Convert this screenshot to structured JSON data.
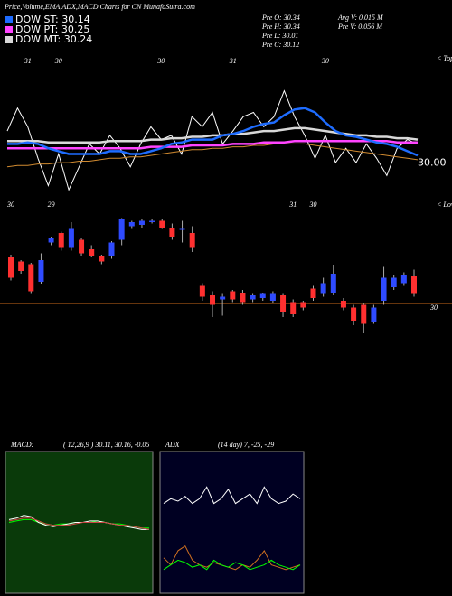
{
  "header": {
    "title": "Price,Volume,EMA,ADX,MACD Charts for CN  MunafaSutra.com"
  },
  "info": [
    [
      "Pre  O: 30.34",
      "Pre  H: 30.34",
      "Pre  L: 30.01",
      "Pre  C: 30.12"
    ],
    [
      "Avg V: 0.015 M",
      "Pre  V: 0.056  M"
    ]
  ],
  "chart_data": [
    {
      "type": "line",
      "ylim": [
        29.75,
        30.6
      ],
      "yticks": [
        {
          "value": 30,
          "label": "30.00"
        }
      ],
      "tops_label": "< Tops",
      "categories": [
        null,
        null,
        "31",
        null,
        null,
        "30",
        null,
        null,
        null,
        null,
        null,
        null,
        null,
        null,
        null,
        "30",
        null,
        null,
        null,
        null,
        null,
        null,
        "31",
        null,
        null,
        null,
        null,
        null,
        null,
        null,
        null,
        "30",
        null,
        null,
        null,
        null,
        null,
        null,
        null,
        null,
        null
      ],
      "series": [
        {
          "color": "#ffffff",
          "values": [
            30.19,
            30.35,
            30.22,
            30.0,
            29.81,
            30.03,
            29.78,
            29.94,
            30.1,
            30.03,
            30.16,
            30.07,
            29.94,
            30.1,
            30.22,
            30.13,
            30.16,
            30.03,
            30.29,
            30.22,
            30.32,
            30.1,
            30.19,
            30.29,
            30.32,
            30.22,
            30.29,
            30.47,
            30.29,
            30.16,
            30.0,
            30.16,
            29.97,
            30.07,
            29.97,
            30.1,
            30.0,
            29.88,
            30.07,
            30.13,
            30.1
          ]
        },
        {
          "color": "#d08a30",
          "values": [
            29.94,
            29.95,
            29.95,
            29.96,
            29.96,
            29.97,
            29.97,
            29.98,
            29.98,
            29.99,
            30.0,
            30.0,
            30.01,
            30.01,
            30.02,
            30.03,
            30.04,
            30.05,
            30.06,
            30.06,
            30.07,
            30.07,
            30.08,
            30.08,
            30.09,
            30.09,
            30.1,
            30.1,
            30.1,
            30.1,
            30.09,
            30.08,
            30.07,
            30.06,
            30.05,
            30.04,
            30.03,
            30.02,
            30.01,
            30.0,
            29.99
          ]
        },
        {
          "name": "DOW MT: 30.24",
          "color": "#d8d8d8",
          "values": [
            30.12,
            30.12,
            30.12,
            30.12,
            30.11,
            30.11,
            30.11,
            30.11,
            30.11,
            30.11,
            30.12,
            30.12,
            30.12,
            30.12,
            30.13,
            30.13,
            30.14,
            30.14,
            30.15,
            30.15,
            30.16,
            30.16,
            30.17,
            30.17,
            30.18,
            30.19,
            30.19,
            30.2,
            30.21,
            30.21,
            30.2,
            30.19,
            30.18,
            30.17,
            30.16,
            30.16,
            30.15,
            30.15,
            30.14,
            30.14,
            30.13
          ]
        },
        {
          "name": "DOW PT: 30.25",
          "color": "#ff44ff",
          "values": [
            30.07,
            30.07,
            30.07,
            30.07,
            30.07,
            30.07,
            30.07,
            30.07,
            30.07,
            30.07,
            30.07,
            30.07,
            30.07,
            30.07,
            30.08,
            30.08,
            30.08,
            30.08,
            30.09,
            30.09,
            30.09,
            30.09,
            30.1,
            30.1,
            30.1,
            30.11,
            30.11,
            30.11,
            30.12,
            30.12,
            30.12,
            30.12,
            30.12,
            30.12,
            30.12,
            30.12,
            30.12,
            30.12,
            30.11,
            30.11,
            30.11
          ]
        },
        {
          "name": "DOW ST: 30.14",
          "color": "#1e6cff",
          "values": [
            30.1,
            30.1,
            30.11,
            30.1,
            30.07,
            30.05,
            30.03,
            30.03,
            30.03,
            30.03,
            30.05,
            30.05,
            30.03,
            30.03,
            30.05,
            30.07,
            30.1,
            30.11,
            30.13,
            30.13,
            30.13,
            30.16,
            30.17,
            30.19,
            30.22,
            30.24,
            30.25,
            30.3,
            30.34,
            30.35,
            30.32,
            30.25,
            30.19,
            30.16,
            30.15,
            30.13,
            30.11,
            30.1,
            30.08,
            30.05,
            30.02
          ]
        }
      ]
    },
    {
      "type": "candlestick",
      "ylim": [
        29.7,
        30.7
      ],
      "yticks": [
        30
      ],
      "lows_label": "< Lows",
      "up_color": "#2f4bff",
      "down_color": "#ff3030",
      "ref_color": "#cc6a1a",
      "categories": [
        "30",
        null,
        null,
        null,
        "29",
        null,
        null,
        null,
        null,
        null,
        null,
        null,
        null,
        null,
        null,
        null,
        null,
        null,
        null,
        null,
        null,
        null,
        null,
        null,
        null,
        null,
        null,
        null,
        "31",
        null,
        "30",
        null,
        null,
        null,
        null,
        null,
        null,
        null,
        null,
        null,
        null
      ],
      "open": [
        30.34,
        30.31,
        30.29,
        30.16,
        30.45,
        30.52,
        30.41,
        30.47,
        30.4,
        30.35,
        30.35,
        30.47,
        30.57,
        30.58,
        30.6,
        30.61,
        30.56,
        30.55,
        30.52,
        30.13,
        30.06,
        30.03,
        30.09,
        30.08,
        30.03,
        30.04,
        30.02,
        30.06,
        30.01,
        30.01,
        30.11,
        30.07,
        30.08,
        30.02,
        29.97,
        29.99,
        29.86,
        30.02,
        30.12,
        30.15,
        30.2
      ],
      "high": [
        30.36,
        30.32,
        30.3,
        30.37,
        30.49,
        30.53,
        30.6,
        30.48,
        30.43,
        30.36,
        30.46,
        30.63,
        30.61,
        30.62,
        30.62,
        30.62,
        30.59,
        30.61,
        30.57,
        30.15,
        30.09,
        30.07,
        30.1,
        30.1,
        30.07,
        30.08,
        30.09,
        30.07,
        30.03,
        30.02,
        30.13,
        30.19,
        30.28,
        30.04,
        29.99,
        30.0,
        29.99,
        30.27,
        30.21,
        30.23,
        30.25
      ],
      "low": [
        30.17,
        30.22,
        30.07,
        30.14,
        30.43,
        30.39,
        30.39,
        30.35,
        30.34,
        30.29,
        30.33,
        30.43,
        30.55,
        30.56,
        30.59,
        30.55,
        30.47,
        30.45,
        30.38,
        30.02,
        29.9,
        29.91,
        30.01,
        29.99,
        30.01,
        30.02,
        30.0,
        29.9,
        29.9,
        29.95,
        30.02,
        30.05,
        30.06,
        29.95,
        29.84,
        29.78,
        29.85,
        29.99,
        30.1,
        30.13,
        30.05
      ],
      "close": [
        30.19,
        30.24,
        30.09,
        30.32,
        30.48,
        30.41,
        30.55,
        30.37,
        30.35,
        30.31,
        30.45,
        30.62,
        30.6,
        30.61,
        30.61,
        30.56,
        30.49,
        30.55,
        30.41,
        30.05,
        29.99,
        30.05,
        30.03,
        30.01,
        30.06,
        30.07,
        30.07,
        29.94,
        29.92,
        29.97,
        30.04,
        30.15,
        30.22,
        29.97,
        29.87,
        29.85,
        29.97,
        30.19,
        30.19,
        30.21,
        30.07
      ]
    },
    {
      "type": "line",
      "title": "MACD:",
      "subtitle": "( 12,26,9 ) 30.11, 30.16, -0.05",
      "background": "#0a3a0a",
      "ylim": [
        -0.5,
        0.5
      ],
      "series": [
        {
          "color": "#00ff00",
          "values": [
            0.0,
            0.01,
            0.02,
            0.02,
            0.0,
            -0.01,
            -0.02,
            -0.01,
            -0.01,
            0.0,
            0.0,
            0.0,
            0.01,
            0.0,
            -0.01,
            -0.01,
            -0.02,
            -0.03,
            -0.04,
            -0.04
          ]
        },
        {
          "color": "#ffffff",
          "values": [
            0.02,
            0.03,
            0.05,
            0.04,
            0.0,
            -0.02,
            -0.03,
            -0.02,
            -0.01,
            0.0,
            0.0,
            0.01,
            0.01,
            0.0,
            -0.01,
            -0.02,
            -0.03,
            -0.04,
            -0.05,
            -0.05
          ]
        },
        {
          "color": "#cc4444",
          "values": [
            0.01,
            0.02,
            0.03,
            0.03,
            0.01,
            -0.01,
            -0.02,
            -0.02,
            -0.02,
            -0.01,
            0.0,
            0.0,
            0.0,
            0.0,
            -0.01,
            -0.02,
            -0.02,
            -0.03,
            -0.04,
            -0.05
          ]
        }
      ]
    },
    {
      "type": "line",
      "title": "ADX",
      "subtitle": "(14  day) 7, -25, -29",
      "background": "#000022",
      "ylim": [
        0,
        60
      ],
      "series": [
        {
          "color": "#ffffff",
          "values": [
            38,
            40,
            39,
            41,
            38,
            40,
            45,
            38,
            40,
            44,
            38,
            40,
            42,
            38,
            45,
            40,
            38,
            39,
            42,
            40
          ]
        },
        {
          "color": "#d07020",
          "values": [
            15,
            12,
            18,
            20,
            14,
            12,
            11,
            13,
            12,
            11,
            10,
            12,
            11,
            14,
            18,
            12,
            11,
            10,
            11,
            12
          ]
        },
        {
          "color": "#00ff00",
          "values": [
            10,
            12,
            14,
            13,
            11,
            12,
            10,
            14,
            12,
            11,
            13,
            12,
            10,
            11,
            12,
            14,
            12,
            11,
            10,
            12
          ]
        }
      ]
    }
  ]
}
